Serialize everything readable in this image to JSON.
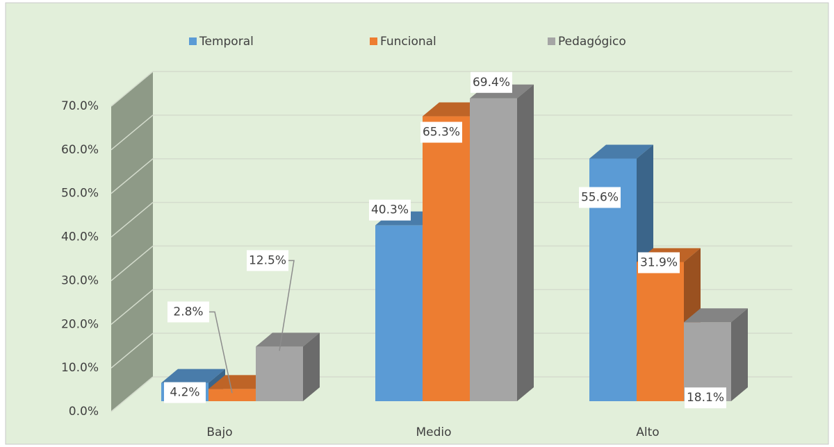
{
  "chart_data": {
    "type": "bar3d",
    "categories": [
      "Bajo",
      "Medio",
      "Alto"
    ],
    "series": [
      {
        "name": "Temporal",
        "color": "#5b9bd5",
        "values": [
          4.2,
          40.3,
          55.6
        ],
        "value_labels": [
          "4.2%",
          "40.3%",
          "55.6%"
        ]
      },
      {
        "name": "Funcional",
        "color": "#ed7d31",
        "values": [
          2.8,
          65.3,
          31.9
        ],
        "value_labels": [
          "2.8%",
          "65.3%",
          "31.9%"
        ]
      },
      {
        "name": "Pedagógico",
        "color": "#a5a5a5",
        "values": [
          12.5,
          69.4,
          18.1
        ],
        "value_labels": [
          "12.5%",
          "69.4%",
          "18.1%"
        ]
      }
    ],
    "ylim": [
      0,
      70
    ],
    "yticks": [
      {
        "value": 0,
        "label": "0.0%"
      },
      {
        "value": 10,
        "label": "10.0%"
      },
      {
        "value": 20,
        "label": "20.0%"
      },
      {
        "value": 30,
        "label": "30.0%"
      },
      {
        "value": 40,
        "label": "40.0%"
      },
      {
        "value": 50,
        "label": "50.0%"
      },
      {
        "value": 60,
        "label": "60.0%"
      },
      {
        "value": 70,
        "label": "70.0%"
      }
    ],
    "grid": true,
    "legend": "top"
  }
}
